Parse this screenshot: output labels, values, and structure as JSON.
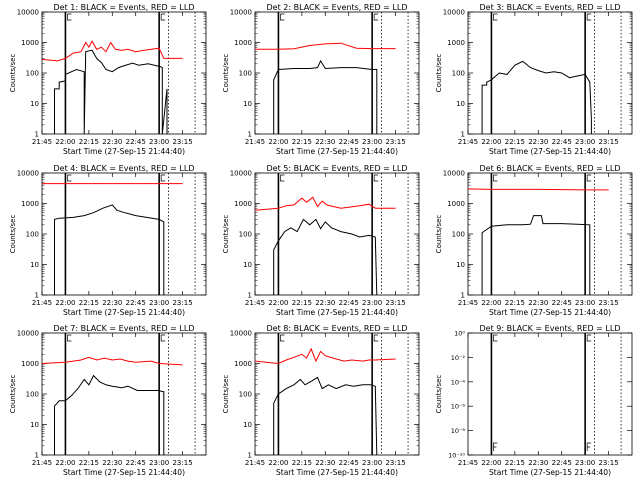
{
  "window": {
    "background": "#ffffff"
  },
  "chart_data": {
    "type": "line",
    "shared": {
      "x_tick_labels": [
        "21:45",
        "22:00",
        "22:15",
        "22:30",
        "22:45",
        "23:00",
        "23:15"
      ],
      "x_tick_minutes": [
        -15,
        0,
        15,
        30,
        45,
        60,
        75
      ],
      "xlim_minutes": [
        -15,
        90
      ],
      "xlabel": "Start Time (27-Sep-15 21:44:40)",
      "ylabel": "Counts/sec",
      "y_scale": "log",
      "y_tick_labels": [
        "1",
        "10",
        "100",
        "1000",
        "10000"
      ],
      "ylim": [
        1,
        10000
      ],
      "solid_markers_minutes": [
        0,
        60
      ],
      "dotted_markers_minutes": [
        66,
        83
      ],
      "colors": {
        "events": "#000000",
        "lld": "#ff0000"
      }
    },
    "panels": [
      {
        "title": "Det 1: BLACK = Events, RED = LLD",
        "events": [
          [
            -7,
            1
          ],
          [
            -7,
            30
          ],
          [
            -4,
            30
          ],
          [
            -4,
            50
          ],
          [
            0,
            55
          ],
          [
            0,
            90
          ],
          [
            7,
            130
          ],
          [
            12,
            110
          ],
          [
            12,
            1
          ],
          [
            13,
            500
          ],
          [
            17,
            560
          ],
          [
            20,
            300
          ],
          [
            23,
            220
          ],
          [
            26,
            130
          ],
          [
            30,
            110
          ],
          [
            34,
            150
          ],
          [
            37,
            170
          ],
          [
            43,
            210
          ],
          [
            47,
            180
          ],
          [
            53,
            200
          ],
          [
            59,
            170
          ],
          [
            60,
            170
          ],
          [
            62,
            150
          ],
          [
            62,
            1
          ],
          [
            65,
            30
          ],
          [
            65,
            1
          ]
        ],
        "lld": [
          [
            -15,
            280
          ],
          [
            -5,
            250
          ],
          [
            0,
            300
          ],
          [
            5,
            450
          ],
          [
            10,
            500
          ],
          [
            13,
            1000
          ],
          [
            15,
            700
          ],
          [
            17,
            1100
          ],
          [
            20,
            600
          ],
          [
            23,
            700
          ],
          [
            26,
            500
          ],
          [
            29,
            1000
          ],
          [
            32,
            600
          ],
          [
            36,
            550
          ],
          [
            40,
            600
          ],
          [
            45,
            500
          ],
          [
            50,
            550
          ],
          [
            55,
            600
          ],
          [
            60,
            650
          ],
          [
            63,
            300
          ],
          [
            75,
            300
          ]
        ]
      },
      {
        "title": "Det 2: BLACK = Events, RED = LLD",
        "events": [
          [
            -3,
            1
          ],
          [
            -3,
            60
          ],
          [
            0,
            130
          ],
          [
            10,
            140
          ],
          [
            20,
            140
          ],
          [
            25,
            150
          ],
          [
            27,
            250
          ],
          [
            30,
            140
          ],
          [
            40,
            150
          ],
          [
            50,
            150
          ],
          [
            60,
            130
          ],
          [
            63,
            130
          ],
          [
            63,
            1
          ]
        ],
        "lld": [
          [
            -15,
            600
          ],
          [
            0,
            600
          ],
          [
            10,
            620
          ],
          [
            20,
            800
          ],
          [
            30,
            900
          ],
          [
            40,
            950
          ],
          [
            50,
            650
          ],
          [
            60,
            630
          ],
          [
            75,
            630
          ]
        ]
      },
      {
        "title": "Det 3: BLACK = Events, RED = LLD",
        "events": [
          [
            -6,
            1
          ],
          [
            -6,
            40
          ],
          [
            -3,
            40
          ],
          [
            -3,
            50
          ],
          [
            0,
            60
          ],
          [
            5,
            100
          ],
          [
            10,
            90
          ],
          [
            15,
            180
          ],
          [
            20,
            240
          ],
          [
            25,
            150
          ],
          [
            30,
            120
          ],
          [
            35,
            100
          ],
          [
            40,
            110
          ],
          [
            45,
            100
          ],
          [
            50,
            70
          ],
          [
            55,
            80
          ],
          [
            60,
            90
          ],
          [
            63,
            50
          ],
          [
            64,
            3
          ],
          [
            64,
            1
          ]
        ],
        "lld": []
      },
      {
        "title": "Det 4: BLACK = Events, RED = LLD",
        "events": [
          [
            -7,
            1
          ],
          [
            -7,
            300
          ],
          [
            -4,
            330
          ],
          [
            5,
            350
          ],
          [
            12,
            400
          ],
          [
            18,
            500
          ],
          [
            24,
            700
          ],
          [
            30,
            900
          ],
          [
            33,
            600
          ],
          [
            38,
            500
          ],
          [
            45,
            400
          ],
          [
            52,
            350
          ],
          [
            60,
            300
          ],
          [
            63,
            250
          ],
          [
            63,
            1
          ]
        ],
        "lld": [
          [
            -15,
            4500
          ],
          [
            75,
            4500
          ]
        ]
      },
      {
        "title": "Det 5: BLACK = Events, RED = LLD",
        "events": [
          [
            -3,
            1
          ],
          [
            -3,
            30
          ],
          [
            0,
            60
          ],
          [
            4,
            120
          ],
          [
            8,
            160
          ],
          [
            12,
            120
          ],
          [
            16,
            300
          ],
          [
            20,
            200
          ],
          [
            24,
            300
          ],
          [
            27,
            150
          ],
          [
            30,
            250
          ],
          [
            34,
            160
          ],
          [
            40,
            120
          ],
          [
            47,
            100
          ],
          [
            52,
            80
          ],
          [
            58,
            90
          ],
          [
            62,
            80
          ],
          [
            63,
            1
          ]
        ],
        "lld": [
          [
            -15,
            600
          ],
          [
            0,
            700
          ],
          [
            5,
            850
          ],
          [
            10,
            900
          ],
          [
            15,
            1500
          ],
          [
            18,
            1100
          ],
          [
            22,
            1600
          ],
          [
            25,
            800
          ],
          [
            28,
            1200
          ],
          [
            31,
            900
          ],
          [
            35,
            800
          ],
          [
            40,
            700
          ],
          [
            45,
            750
          ],
          [
            52,
            850
          ],
          [
            58,
            950
          ],
          [
            62,
            700
          ],
          [
            75,
            700
          ]
        ]
      },
      {
        "title": "Det 6: BLACK = Events, RED = LLD",
        "events": [
          [
            -6,
            1
          ],
          [
            -6,
            110
          ],
          [
            -3,
            140
          ],
          [
            0,
            180
          ],
          [
            10,
            200
          ],
          [
            20,
            200
          ],
          [
            25,
            210
          ],
          [
            27,
            400
          ],
          [
            32,
            400
          ],
          [
            33,
            220
          ],
          [
            45,
            220
          ],
          [
            55,
            210
          ],
          [
            63,
            200
          ],
          [
            63,
            1
          ]
        ],
        "lld": [
          [
            -15,
            3000
          ],
          [
            0,
            2900
          ],
          [
            30,
            2900
          ],
          [
            60,
            2800
          ],
          [
            75,
            2800
          ]
        ]
      },
      {
        "title": "Det 7: BLACK = Events, RED = LLD",
        "events": [
          [
            -7,
            1
          ],
          [
            -7,
            40
          ],
          [
            -4,
            60
          ],
          [
            0,
            60
          ],
          [
            4,
            90
          ],
          [
            8,
            150
          ],
          [
            12,
            300
          ],
          [
            15,
            200
          ],
          [
            18,
            400
          ],
          [
            22,
            250
          ],
          [
            26,
            200
          ],
          [
            30,
            180
          ],
          [
            36,
            160
          ],
          [
            40,
            180
          ],
          [
            46,
            130
          ],
          [
            52,
            130
          ],
          [
            58,
            130
          ],
          [
            60,
            130
          ],
          [
            62,
            120
          ],
          [
            63,
            120
          ],
          [
            63,
            1
          ]
        ],
        "lld": [
          [
            -15,
            1000
          ],
          [
            0,
            1100
          ],
          [
            5,
            1200
          ],
          [
            10,
            1300
          ],
          [
            15,
            1600
          ],
          [
            20,
            1300
          ],
          [
            25,
            1500
          ],
          [
            30,
            1300
          ],
          [
            35,
            1400
          ],
          [
            40,
            1200
          ],
          [
            45,
            1100
          ],
          [
            55,
            1200
          ],
          [
            60,
            1000
          ],
          [
            75,
            900
          ]
        ]
      },
      {
        "title": "Det 8: BLACK = Events, RED = LLD",
        "events": [
          [
            -3,
            1
          ],
          [
            -3,
            50
          ],
          [
            0,
            100
          ],
          [
            5,
            150
          ],
          [
            10,
            200
          ],
          [
            14,
            300
          ],
          [
            17,
            200
          ],
          [
            21,
            260
          ],
          [
            25,
            350
          ],
          [
            28,
            150
          ],
          [
            32,
            200
          ],
          [
            37,
            150
          ],
          [
            43,
            200
          ],
          [
            48,
            180
          ],
          [
            54,
            200
          ],
          [
            59,
            200
          ],
          [
            62,
            180
          ],
          [
            63,
            1
          ]
        ],
        "lld": [
          [
            -15,
            1200
          ],
          [
            0,
            1000
          ],
          [
            5,
            1300
          ],
          [
            10,
            1600
          ],
          [
            15,
            2000
          ],
          [
            18,
            1500
          ],
          [
            21,
            3000
          ],
          [
            24,
            1200
          ],
          [
            27,
            2500
          ],
          [
            30,
            1800
          ],
          [
            35,
            1500
          ],
          [
            42,
            1200
          ],
          [
            47,
            1300
          ],
          [
            54,
            1200
          ],
          [
            58,
            1300
          ],
          [
            62,
            1300
          ],
          [
            75,
            1400
          ]
        ]
      },
      {
        "title": "Det 9: BLACK = Events, RED = LLD",
        "events": [],
        "lld": []
      }
    ],
    "panel9_y_tick_labels": [
      "10⁻¹⁰",
      "10⁻⁸",
      "10⁻⁶",
      "10⁻⁴",
      "10⁻²",
      "10⁰"
    ],
    "panel9_ylim_exponent": [
      -10,
      0
    ]
  }
}
